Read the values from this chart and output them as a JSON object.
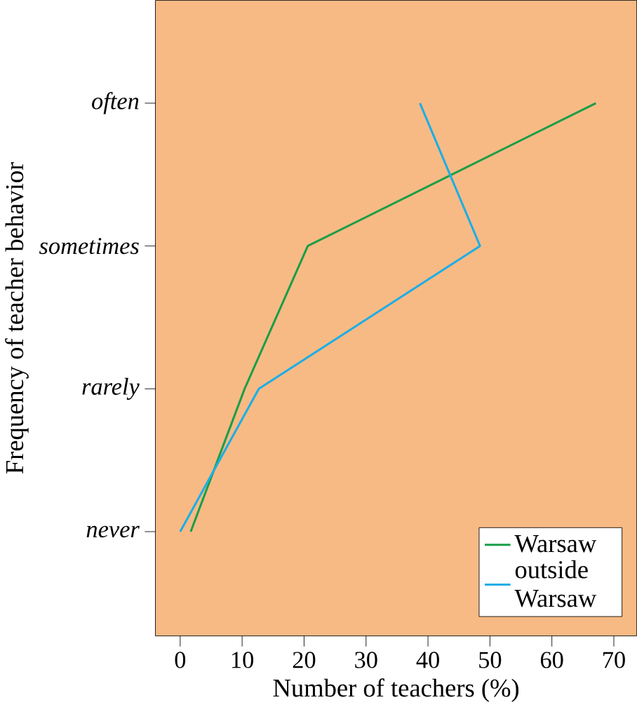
{
  "chart_data": {
    "type": "line",
    "orientation": "horizontal",
    "xlabel": "Number of teachers (%)",
    "ylabel": "Frequency of teacher behavior",
    "xlim": [
      -4,
      73.7
    ],
    "xticks": [
      0,
      10,
      20,
      30,
      40,
      50,
      60,
      70
    ],
    "categories": [
      "often",
      "sometimes",
      "rarely",
      "never"
    ],
    "series": [
      {
        "name": "Warsaw",
        "color": "#1a9e48",
        "values": [
          67.1,
          20.6,
          10.4,
          1.7
        ]
      },
      {
        "name": "outside Warsaw",
        "color": "#1aaee8",
        "values": [
          38.7,
          48.4,
          12.7,
          0
        ]
      }
    ],
    "legend": "bottom right",
    "grid": false
  }
}
